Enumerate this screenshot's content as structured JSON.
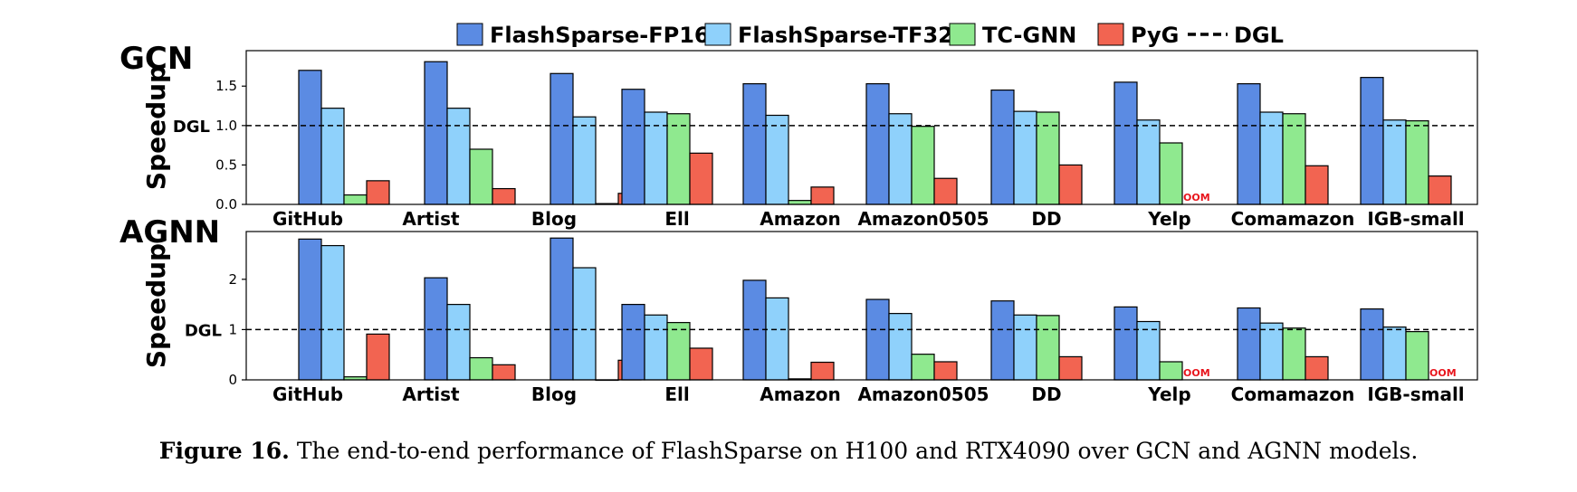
{
  "legend": {
    "items": [
      {
        "label": "FlashSparse-FP16",
        "color": "#5b8be3",
        "kind": "bar"
      },
      {
        "label": "FlashSparse-TF32",
        "color": "#8fd1fb",
        "kind": "bar"
      },
      {
        "label": "TC-GNN",
        "color": "#8fe98f",
        "kind": "bar"
      },
      {
        "label": "PyG",
        "color": "#f26451",
        "kind": "bar"
      },
      {
        "label": "DGL",
        "color": "#000000",
        "kind": "dashed"
      }
    ]
  },
  "caption": {
    "label": "Figure 16.",
    "text": " The end-to-end performance of FlashSparse on H100 and RTX4090 over GCN and AGNN models."
  },
  "chart_data": [
    {
      "type": "bar",
      "title": "GCN",
      "ylabel": "Speedup",
      "ylim": [
        0,
        1.95
      ],
      "yticks": [
        0.0,
        0.5,
        1.0,
        1.5
      ],
      "ytick_labels": [
        "0.0",
        "0.5",
        "1.0",
        "1.5"
      ],
      "reference_line": {
        "label": "DGL",
        "value": 1.0
      },
      "categories": [
        "GitHub",
        "Artist",
        "Blog",
        "Ell",
        "Amazon",
        "Amazon0505",
        "DD",
        "Yelp",
        "Comamazon",
        "IGB-small"
      ],
      "series": [
        {
          "name": "FlashSparse-FP16",
          "values": [
            1.7,
            1.81,
            1.66,
            1.46,
            1.53,
            1.53,
            1.45,
            1.55,
            1.53,
            1.61
          ]
        },
        {
          "name": "FlashSparse-TF32",
          "values": [
            1.22,
            1.22,
            1.11,
            1.17,
            1.13,
            1.15,
            1.18,
            1.07,
            1.17,
            1.07
          ]
        },
        {
          "name": "TC-GNN",
          "values": [
            0.12,
            0.7,
            0.01,
            1.15,
            0.05,
            0.99,
            1.17,
            0.78,
            1.15,
            1.06
          ]
        },
        {
          "name": "PyG",
          "values": [
            0.3,
            0.2,
            0.14,
            0.65,
            0.22,
            0.33,
            0.5,
            null,
            0.49,
            0.36
          ]
        }
      ],
      "annotations": [
        {
          "category": "Yelp",
          "series": "PyG",
          "text": "OOM"
        }
      ]
    },
    {
      "type": "bar",
      "title": "AGNN",
      "ylabel": "Speedup",
      "ylim": [
        0,
        2.95
      ],
      "yticks": [
        0,
        1,
        2
      ],
      "ytick_labels": [
        "0",
        "1",
        "2"
      ],
      "reference_line": {
        "label": "DGL",
        "value": 1.0
      },
      "categories": [
        "GitHub",
        "Artist",
        "Blog",
        "Ell",
        "Amazon",
        "Amazon0505",
        "DD",
        "Yelp",
        "Comamazon",
        "IGB-small"
      ],
      "series": [
        {
          "name": "FlashSparse-FP16",
          "values": [
            2.8,
            2.03,
            2.82,
            1.5,
            1.98,
            1.6,
            1.57,
            1.45,
            1.43,
            1.41
          ]
        },
        {
          "name": "FlashSparse-TF32",
          "values": [
            2.67,
            1.5,
            2.23,
            1.29,
            1.63,
            1.32,
            1.29,
            1.16,
            1.13,
            1.05
          ]
        },
        {
          "name": "TC-GNN",
          "values": [
            0.06,
            0.44,
            0.0,
            1.14,
            0.02,
            0.51,
            1.28,
            0.36,
            1.03,
            0.96
          ]
        },
        {
          "name": "PyG",
          "values": [
            0.91,
            0.3,
            0.39,
            0.63,
            0.35,
            0.36,
            0.46,
            null,
            0.46,
            null
          ]
        }
      ],
      "annotations": [
        {
          "category": "Yelp",
          "series": "PyG",
          "text": "OOM"
        },
        {
          "category": "IGB-small",
          "series": "PyG",
          "text": "OOM"
        }
      ]
    }
  ]
}
